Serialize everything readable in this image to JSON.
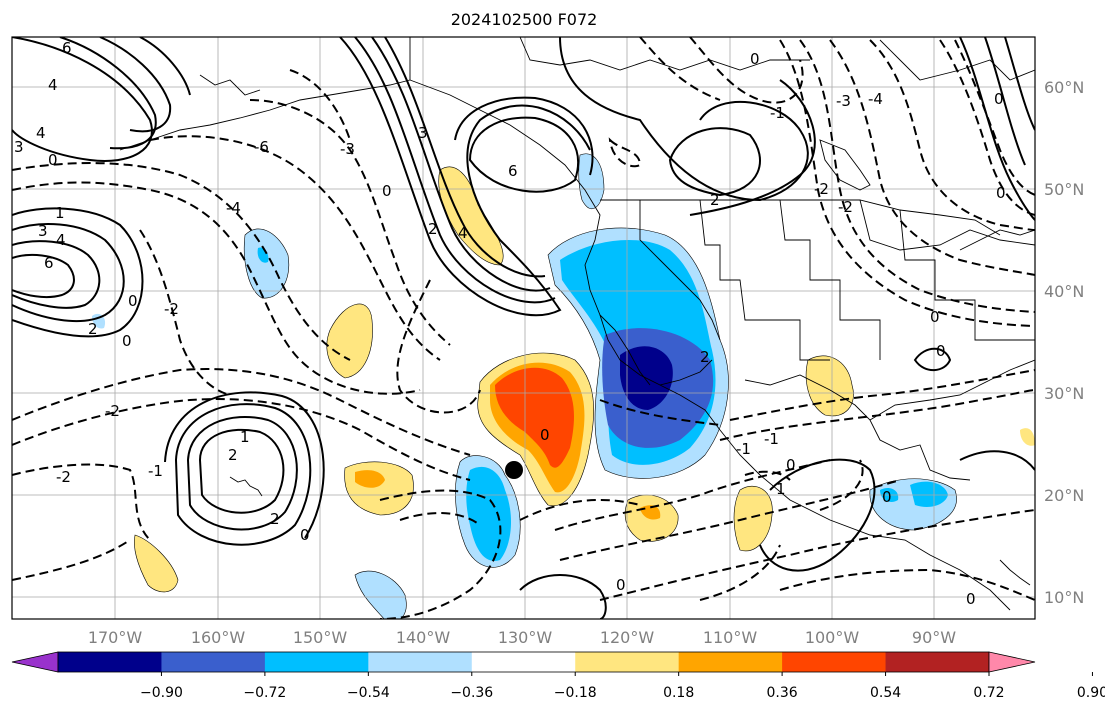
{
  "title": "2024102500 F072",
  "map": {
    "lon_labels": [
      "170°W",
      "160°W",
      "150°W",
      "140°W",
      "130°W",
      "120°W",
      "110°W",
      "100°W",
      "90°W"
    ],
    "lat_labels": [
      "60°N",
      "50°N",
      "40°N",
      "30°N",
      "20°N",
      "10°N"
    ],
    "contour_labels": [
      "6",
      "4",
      "3",
      "0",
      "1",
      "2",
      "-4",
      "-6",
      "-3",
      "-2",
      "-1"
    ]
  },
  "colorbar": {
    "ticks": [
      "−0.90",
      "−0.72",
      "−0.54",
      "−0.36",
      "−0.18",
      "0.18",
      "0.36",
      "0.54",
      "0.72",
      "0.90"
    ],
    "colors": [
      "#9932cc",
      "#00008b",
      "#3a5fcd",
      "#00bfff",
      "#b0e0ff",
      "#ffffff",
      "#ffe680",
      "#ffa500",
      "#ff4500",
      "#b22222",
      "#ff88aa"
    ]
  }
}
